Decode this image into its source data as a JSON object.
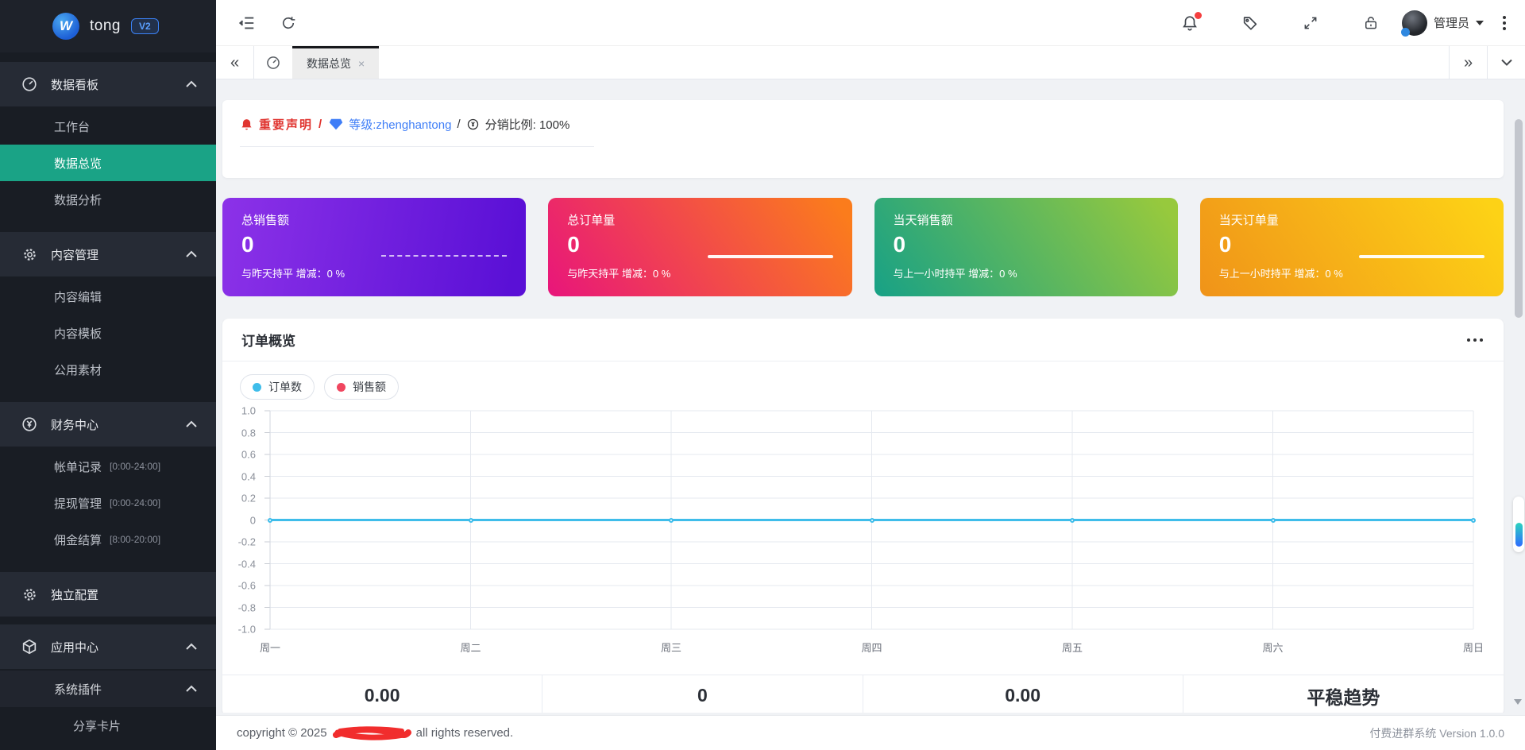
{
  "app": {
    "logo_text": "tong",
    "version_badge": "V2"
  },
  "colors": {
    "sidebar_bg": "#191d24",
    "active_menu": "#1aa386",
    "notice_red": "#e0342f",
    "link_blue": "#3f7ef7",
    "card_gradient_1": [
      "#8c32e8",
      "#5a10d6"
    ],
    "card_gradient_2": [
      "#e8157b",
      "#fb7c1c"
    ],
    "card_gradient_3": [
      "#17a186",
      "#97c93d"
    ],
    "card_gradient_4": [
      "#f09319",
      "#fdd216"
    ]
  },
  "sidebar": {
    "items": [
      {
        "label": "数据看板",
        "icon": "dashboard-icon"
      },
      {
        "label": "工作台"
      },
      {
        "label": "数据总览",
        "active": true
      },
      {
        "label": "数据分析"
      },
      {
        "label": "内容管理",
        "icon": "gear-icon"
      },
      {
        "label": "内容编辑"
      },
      {
        "label": "内容模板"
      },
      {
        "label": "公用素材"
      },
      {
        "label": "财务中心",
        "icon": "yen-circle-icon"
      },
      {
        "label": "帐单记录",
        "badge": "[0:00-24:00]"
      },
      {
        "label": "提现管理",
        "badge": "[0:00-24:00]"
      },
      {
        "label": "佣金结算",
        "badge": "[8:00-20:00]"
      },
      {
        "label": "独立配置",
        "icon": "gear-icon"
      },
      {
        "label": "应用中心",
        "icon": "cube-icon"
      },
      {
        "label": "系统插件"
      },
      {
        "label": "分享卡片"
      }
    ]
  },
  "topbar": {
    "left_icons": [
      "collapse-sidebar-icon",
      "refresh-icon"
    ],
    "right_icons": [
      "notification-bell-icon",
      "tag-icon",
      "fullscreen-icon",
      "lock-icon"
    ],
    "user_name": "管理员"
  },
  "tabs": {
    "active_label": "数据总览"
  },
  "notice": {
    "statement": "重要声明",
    "sep1": "/",
    "level": "等级:zhenghantong",
    "sep2": "/",
    "ratio": "分销比例: 100%"
  },
  "stat_cards": [
    {
      "title": "总销售额",
      "value": "0",
      "subtitle": "与昨天持平 增减：0 %"
    },
    {
      "title": "总订单量",
      "value": "0",
      "subtitle": "与昨天持平 增减：0 %"
    },
    {
      "title": "当天销售额",
      "value": "0",
      "subtitle": "与上一小时持平 增减：0 %"
    },
    {
      "title": "当天订单量",
      "value": "0",
      "subtitle": "与上一小时持平 增减：0 %"
    }
  ],
  "panel": {
    "title": "订单概览"
  },
  "chart_data": {
    "type": "line",
    "title": "订单概览",
    "categories": [
      "周一",
      "周二",
      "周三",
      "周四",
      "周五",
      "周六",
      "周日"
    ],
    "series": [
      {
        "name": "订单数",
        "color": "#3fbdea",
        "values": [
          0,
          0,
          0,
          0,
          0,
          0,
          0
        ]
      },
      {
        "name": "销售额",
        "color": "#f0465f",
        "values": [
          0,
          0,
          0,
          0,
          0,
          0,
          0
        ]
      }
    ],
    "ylim": [
      -1.0,
      1.0
    ],
    "yticks": [
      1.0,
      0.8,
      0.6,
      0.4,
      0.2,
      0,
      -0.2,
      -0.4,
      -0.6,
      -0.8,
      -1.0
    ],
    "grid": true,
    "legend_position": "top-left"
  },
  "summary": {
    "values": [
      "0.00",
      "0",
      "0.00",
      "平稳趋势"
    ]
  },
  "footer": {
    "left_prefix": "copyright © 2025",
    "left_suffix": "all rights reserved.",
    "right": "付费进群系统 Version 1.0.0"
  }
}
